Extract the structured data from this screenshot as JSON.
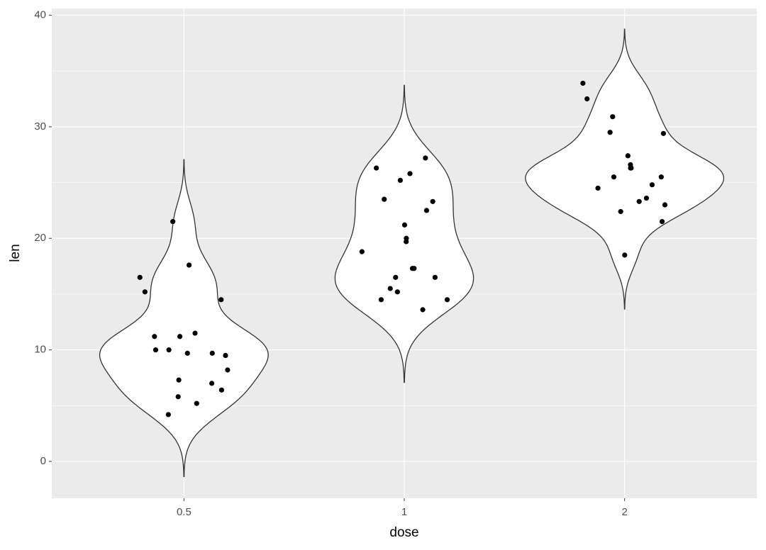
{
  "chart_data": {
    "type": "violin",
    "x_label": "dose",
    "y_label": "len",
    "categories": [
      "0.5",
      "1",
      "2"
    ],
    "values": [
      [
        16.5,
        14.5,
        15.2,
        17.6,
        21.5,
        11.2,
        11.5,
        11.2,
        10.0,
        9.7,
        9.5,
        9.7,
        10.0,
        8.2,
        7.0,
        7.3,
        6.4,
        5.8,
        5.2,
        4.2
      ],
      [
        26.3,
        27.2,
        25.8,
        25.2,
        23.5,
        23.3,
        22.5,
        21.2,
        20.0,
        19.7,
        18.8,
        17.3,
        17.3,
        16.5,
        16.5,
        15.5,
        15.2,
        14.5,
        14.5,
        13.6
      ],
      [
        33.9,
        32.5,
        30.9,
        29.5,
        29.4,
        27.4,
        26.3,
        26.6,
        26.3,
        26.3,
        25.5,
        25.5,
        24.8,
        24.5,
        23.6,
        23.3,
        23.0,
        22.4,
        21.5,
        18.5
      ]
    ],
    "violin_fill": "#ffffff",
    "violin_stroke": "#333333",
    "point_color": "#000000",
    "ylim": [
      -3.3,
      40.6
    ],
    "yticks": [
      0,
      10,
      20,
      30,
      40
    ],
    "grid": true
  }
}
